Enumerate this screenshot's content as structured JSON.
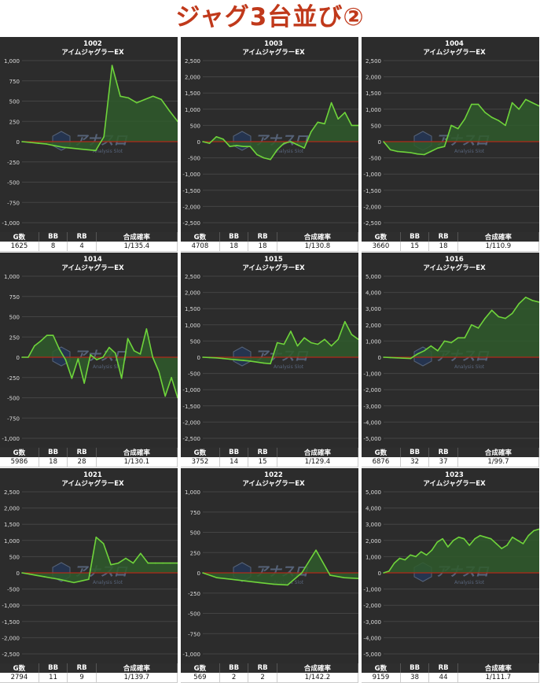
{
  "page": {
    "title": "ジャグ3台並び②"
  },
  "colors": {
    "background": "#2c2c2c",
    "grid": "#444444",
    "line": "#6fd43b",
    "fill_pos": "#2f5a2b",
    "fill_neg": "#2f5a2b",
    "zero": "#b02a1a",
    "axis_text": "#dddddd",
    "title_color": "#c0391b"
  },
  "stats_headers": [
    "G数",
    "BB",
    "RB",
    "合成確率"
  ],
  "watermark": {
    "icon": "logo-icon",
    "text": "アナスロ",
    "sub": "Analysis Slot"
  },
  "chart_data": [
    {
      "type": "area",
      "unit": "1002",
      "model": "アイムジャグラーEX",
      "yticks": [
        1000,
        750,
        500,
        250,
        0,
        -250,
        -500,
        -750,
        -1000
      ],
      "ylim": [
        -1000,
        1000
      ],
      "x_count": 20,
      "y": [
        0,
        -10,
        -20,
        -30,
        -50,
        -70,
        -80,
        -90,
        -100,
        -110,
        60,
        940,
        560,
        540,
        480,
        520,
        560,
        520,
        380,
        250
      ],
      "stats": {
        "games": "1625",
        "bb": "8",
        "rb": "4",
        "prob": "1/135.4"
      }
    },
    {
      "type": "area",
      "unit": "1003",
      "model": "アイムジャグラーEX",
      "yticks": [
        2500,
        2000,
        1500,
        1000,
        500,
        0,
        -500,
        -1000,
        -1500,
        -2000,
        -2500
      ],
      "ylim": [
        -2500,
        2500
      ],
      "x_count": 24,
      "y": [
        0,
        -50,
        150,
        80,
        -150,
        -120,
        -150,
        -150,
        -400,
        -500,
        -550,
        -250,
        -50,
        0,
        -100,
        -200,
        300,
        600,
        550,
        1200,
        700,
        900,
        500,
        500
      ],
      "stats": {
        "games": "4708",
        "bb": "18",
        "rb": "18",
        "prob": "1/130.8"
      }
    },
    {
      "type": "area",
      "unit": "1004",
      "model": "アイムジャグラーEX",
      "yticks": [
        2500,
        2000,
        1500,
        1000,
        500,
        0,
        -500,
        -1000,
        -1500,
        -2000,
        -2500
      ],
      "ylim": [
        -2500,
        2500
      ],
      "x_count": 24,
      "y": [
        0,
        -250,
        -300,
        -320,
        -340,
        -380,
        -400,
        -300,
        -200,
        -150,
        500,
        400,
        700,
        1150,
        1150,
        900,
        750,
        650,
        500,
        1200,
        1000,
        1300,
        1200,
        1100
      ],
      "stats": {
        "games": "3660",
        "bb": "15",
        "rb": "18",
        "prob": "1/110.9"
      }
    },
    {
      "type": "area",
      "unit": "1014",
      "model": "アイムジャグラーEX",
      "yticks": [
        1000,
        750,
        500,
        250,
        0,
        -250,
        -500,
        -750,
        -1000
      ],
      "ylim": [
        -1000,
        1000
      ],
      "x_count": 26,
      "y": [
        0,
        0,
        140,
        200,
        270,
        270,
        100,
        -30,
        -260,
        -20,
        -320,
        30,
        -30,
        0,
        120,
        50,
        -260,
        230,
        80,
        40,
        350,
        0,
        -180,
        -480,
        -250,
        -500
      ],
      "stats": {
        "games": "5986",
        "bb": "18",
        "rb": "28",
        "prob": "1/130.1"
      }
    },
    {
      "type": "area",
      "unit": "1015",
      "model": "アイムジャグラーEX",
      "yticks": [
        2500,
        2000,
        1500,
        1000,
        500,
        0,
        -500,
        -1000,
        -1500,
        -2000,
        -2500
      ],
      "ylim": [
        -2500,
        2500
      ],
      "x_count": 24,
      "y": [
        0,
        -10,
        -20,
        -40,
        -60,
        -80,
        -100,
        -120,
        -150,
        -180,
        -200,
        450,
        400,
        800,
        350,
        600,
        450,
        400,
        550,
        350,
        550,
        1100,
        700,
        550
      ],
      "stats": {
        "games": "3752",
        "bb": "14",
        "rb": "15",
        "prob": "1/129.4"
      }
    },
    {
      "type": "area",
      "unit": "1016",
      "model": "アイムジャグラーEX",
      "yticks": [
        5000,
        4000,
        3000,
        2000,
        1000,
        0,
        -1000,
        -2000,
        -3000,
        -4000,
        -5000
      ],
      "ylim": [
        -5000,
        5000
      ],
      "x_count": 24,
      "y": [
        0,
        -20,
        -40,
        -60,
        -80,
        200,
        400,
        700,
        400,
        1000,
        900,
        1200,
        1200,
        2000,
        1800,
        2400,
        2900,
        2500,
        2400,
        2700,
        3300,
        3700,
        3500,
        3400
      ],
      "stats": {
        "games": "6876",
        "bb": "32",
        "rb": "37",
        "prob": "1/99.7"
      }
    },
    {
      "type": "area",
      "unit": "1021",
      "model": "アイムジャグラーEX",
      "yticks": [
        2500,
        2000,
        1500,
        1000,
        500,
        0,
        -500,
        -1000,
        -1500,
        -2000,
        -2500
      ],
      "ylim": [
        -2500,
        2500
      ],
      "x_count": 22,
      "y": [
        0,
        -40,
        -80,
        -120,
        -160,
        -200,
        -250,
        -300,
        -250,
        -200,
        1100,
        900,
        250,
        300,
        450,
        300,
        600,
        300,
        300,
        300,
        300,
        300
      ],
      "stats": {
        "games": "2794",
        "bb": "11",
        "rb": "9",
        "prob": "1/139.7"
      }
    },
    {
      "type": "area",
      "unit": "1022",
      "model": "アイムジャグラーEX",
      "yticks": [
        1000,
        750,
        500,
        250,
        0,
        -250,
        -500,
        -750,
        -1000
      ],
      "ylim": [
        -1000,
        1000
      ],
      "x_count": 12,
      "y": [
        0,
        -60,
        -80,
        -100,
        -120,
        -140,
        -150,
        0,
        280,
        -30,
        -60,
        -70
      ],
      "stats": {
        "games": "569",
        "bb": "2",
        "rb": "2",
        "prob": "1/142.2"
      }
    },
    {
      "type": "area",
      "unit": "1023",
      "model": "アイムジャグラーEX",
      "yticks": [
        5000,
        4000,
        3000,
        2000,
        1000,
        0,
        -1000,
        -2000,
        -3000,
        -4000,
        -5000
      ],
      "ylim": [
        -5000,
        5000
      ],
      "x_count": 30,
      "y": [
        0,
        100,
        600,
        900,
        800,
        1100,
        1000,
        1300,
        1100,
        1400,
        1900,
        2100,
        1600,
        2000,
        2200,
        2100,
        1700,
        2100,
        2300,
        2200,
        2100,
        1800,
        1500,
        1700,
        2200,
        2000,
        1800,
        2300,
        2600,
        2700
      ],
      "stats": {
        "games": "9159",
        "bb": "38",
        "rb": "44",
        "prob": "1/111.7"
      }
    }
  ]
}
